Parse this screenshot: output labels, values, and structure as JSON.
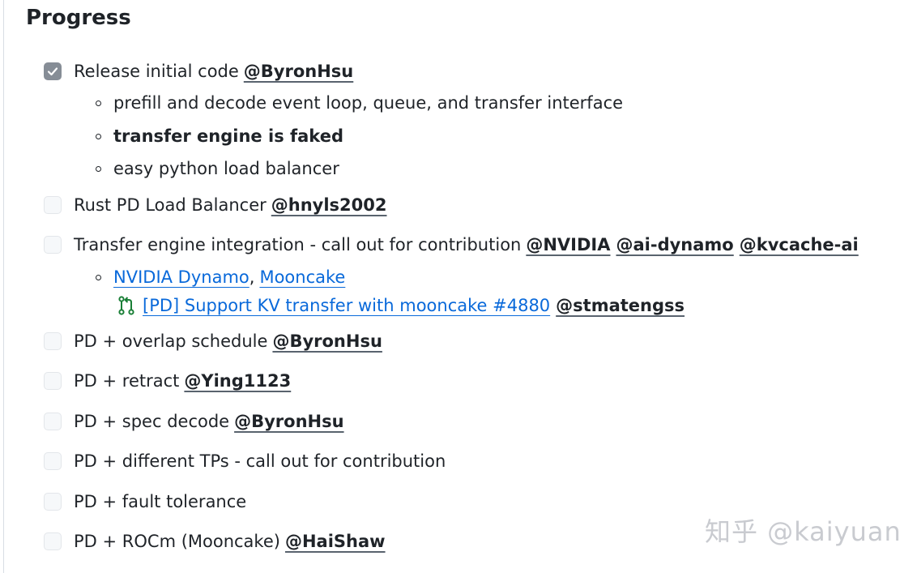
{
  "heading": "Progress",
  "tasks": [
    {
      "checked": true,
      "text": "Release initial code",
      "mentions": [
        "@ByronHsu"
      ]
    },
    {
      "checked": false,
      "text": "Rust PD Load Balancer",
      "mentions": [
        "@hnyls2002"
      ]
    },
    {
      "checked": false,
      "text": "Transfer engine integration - call out for contribution",
      "mentions": [
        "@NVIDIA",
        "@ai-dynamo",
        "@kvcache-ai"
      ]
    },
    {
      "checked": false,
      "text": "PD + overlap schedule",
      "mentions": [
        "@ByronHsu"
      ]
    },
    {
      "checked": false,
      "text": "PD + retract",
      "mentions": [
        "@Ying1123"
      ]
    },
    {
      "checked": false,
      "text": "PD + spec decode",
      "mentions": [
        "@ByronHsu"
      ]
    },
    {
      "checked": false,
      "text": "PD + different TPs - call out for contribution",
      "mentions": []
    },
    {
      "checked": false,
      "text": "PD + fault tolerance",
      "mentions": []
    },
    {
      "checked": false,
      "text": "PD + ROCm (Mooncake)",
      "mentions": [
        "@HaiShaw"
      ]
    }
  ],
  "release_subitems": [
    "prefill and decode event loop, queue, and transfer interface",
    "transfer engine is faked",
    "easy python load balancer"
  ],
  "transfer_subitem": {
    "link1": "NVIDIA Dynamo",
    "separator": ",",
    "link2": "Mooncake",
    "pr_link": "[PD] Support KV transfer with mooncake #4880",
    "pr_mention": "@stmatengss",
    "pr_icon": "git-pull-request-icon"
  },
  "watermark": "知乎 @kaiyuan",
  "colors": {
    "link": "#0969da",
    "text": "#1f2328",
    "checked_box": "#868d96",
    "pr_icon": "#1a7f37",
    "watermark": "#c9cbd0"
  }
}
